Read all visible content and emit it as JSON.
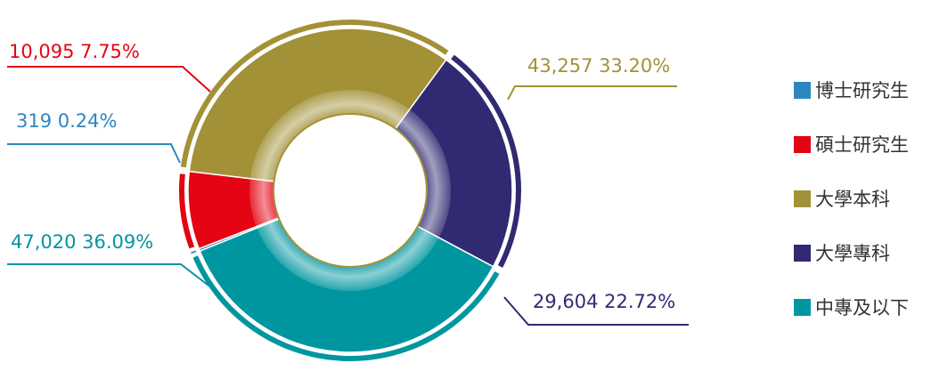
{
  "chart_data": {
    "type": "pie",
    "slices": [
      {
        "name": "博士研究生",
        "count": "319",
        "percent": "0.24%",
        "value": 319,
        "color": "#2e86c1"
      },
      {
        "name": "碩士研究生",
        "count": "10,095",
        "percent": "7.75%",
        "value": 10095,
        "color": "#e30513"
      },
      {
        "name": "大學本科",
        "count": "43,257",
        "percent": "33.20%",
        "value": 43257,
        "color": "#a39138"
      },
      {
        "name": "大學專科",
        "count": "29,604",
        "percent": "22.72%",
        "value": 29604,
        "color": "#302a72"
      },
      {
        "name": "中專及以下",
        "count": "47,020",
        "percent": "36.09%",
        "value": 47020,
        "color": "#0096a0"
      }
    ],
    "legend_position": "right",
    "center_ring_color": "#a39138"
  }
}
